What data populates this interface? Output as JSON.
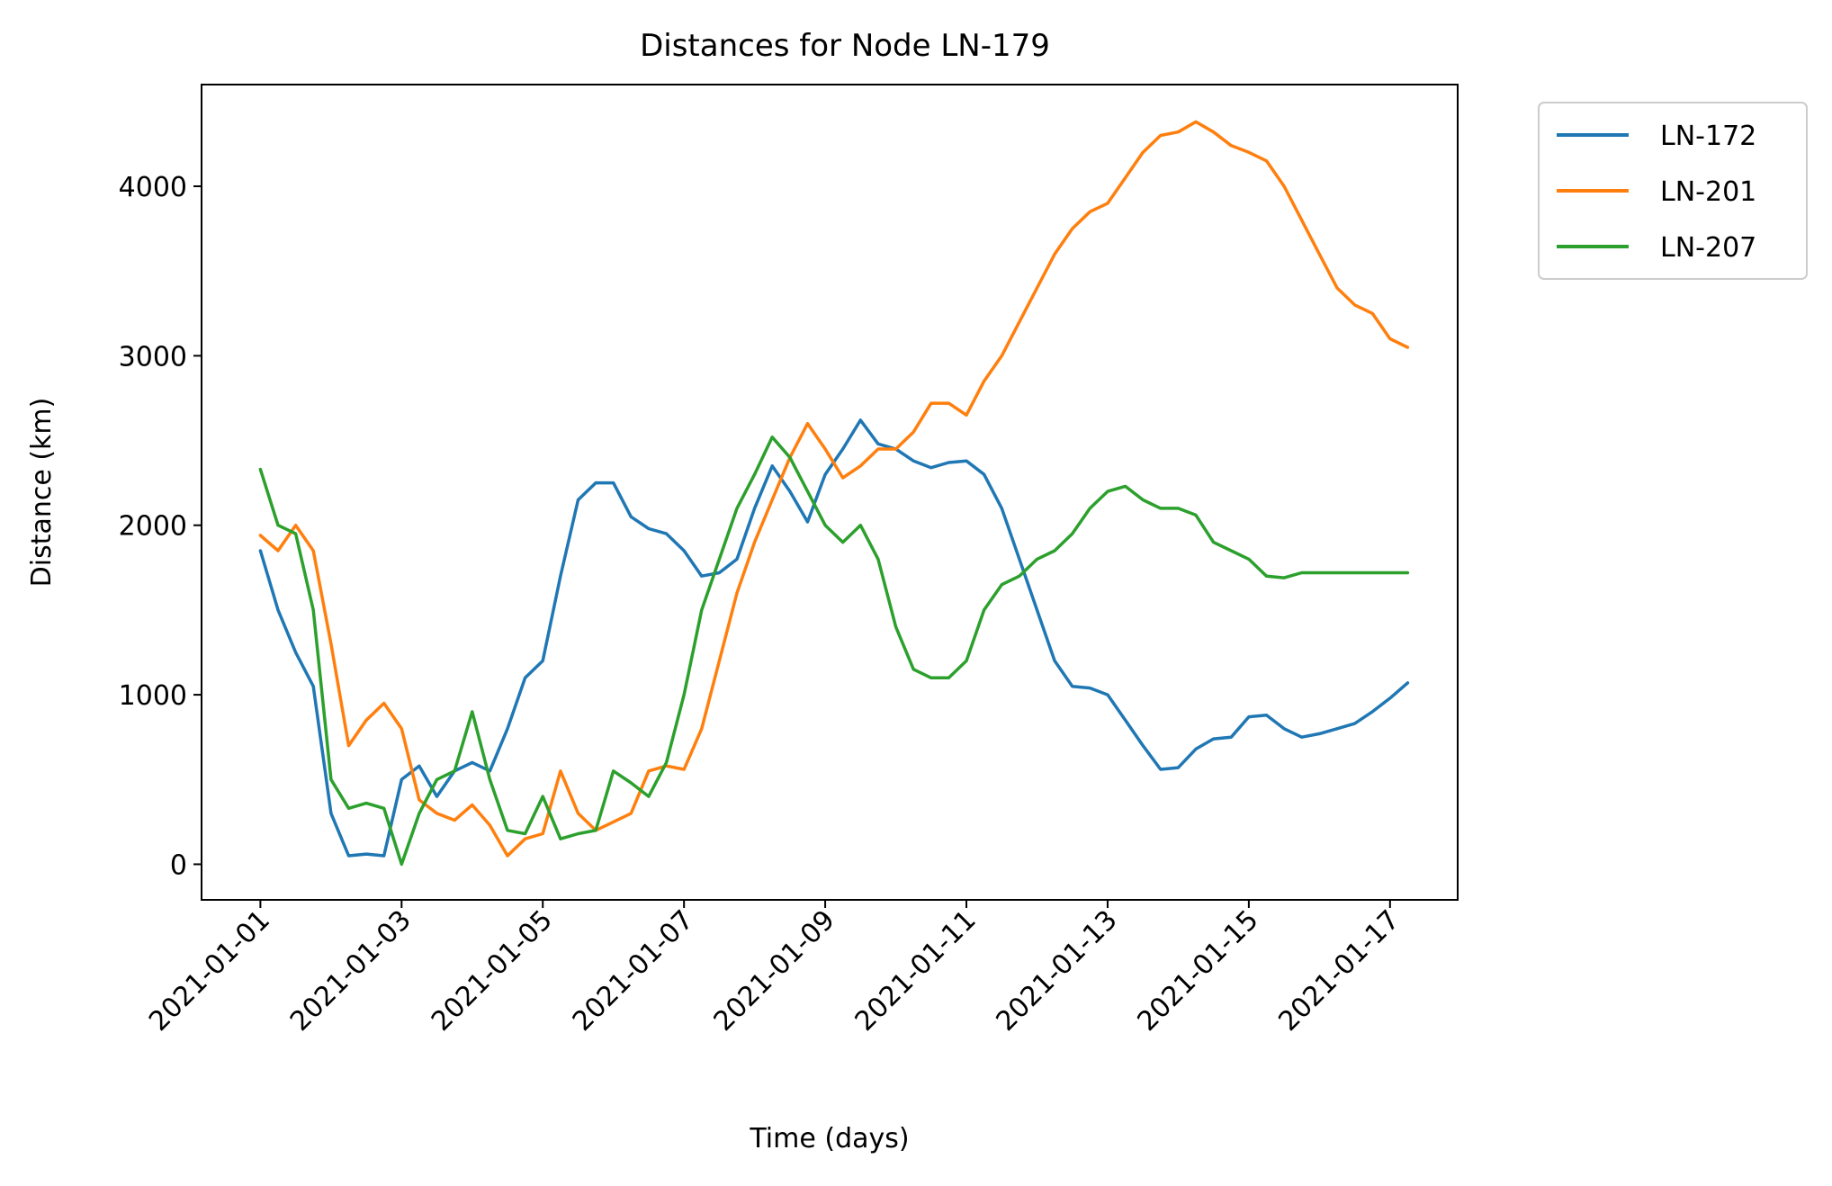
{
  "chart_data": {
    "type": "line",
    "title": "Distances for Node LN-179",
    "xlabel": "Time (days)",
    "ylabel": "Distance (km)",
    "x_ticks": [
      "2021-01-01",
      "2021-01-03",
      "2021-01-05",
      "2021-01-07",
      "2021-01-09",
      "2021-01-11",
      "2021-01-13",
      "2021-01-15",
      "2021-01-17"
    ],
    "y_ticks": [
      0,
      1000,
      2000,
      3000,
      4000
    ],
    "xlim": [
      "2020-12-31T04:00",
      "2021-01-17T23:00"
    ],
    "ylim": [
      -210,
      4600
    ],
    "grid": false,
    "legend_position": "outside-top-right",
    "series": [
      {
        "name": "LN-172",
        "color": "#1f77b4",
        "x": [
          "2021-01-01T00:00",
          "2021-01-01T06:00",
          "2021-01-01T12:00",
          "2021-01-01T18:00",
          "2021-01-02T00:00",
          "2021-01-02T06:00",
          "2021-01-02T12:00",
          "2021-01-02T18:00",
          "2021-01-03T00:00",
          "2021-01-03T06:00",
          "2021-01-03T12:00",
          "2021-01-03T18:00",
          "2021-01-04T00:00",
          "2021-01-04T06:00",
          "2021-01-04T12:00",
          "2021-01-04T18:00",
          "2021-01-05T00:00",
          "2021-01-05T06:00",
          "2021-01-05T12:00",
          "2021-01-05T18:00",
          "2021-01-06T00:00",
          "2021-01-06T06:00",
          "2021-01-06T12:00",
          "2021-01-06T18:00",
          "2021-01-07T00:00",
          "2021-01-07T06:00",
          "2021-01-07T12:00",
          "2021-01-07T18:00",
          "2021-01-08T00:00",
          "2021-01-08T06:00",
          "2021-01-08T12:00",
          "2021-01-08T18:00",
          "2021-01-09T00:00",
          "2021-01-09T06:00",
          "2021-01-09T12:00",
          "2021-01-09T18:00",
          "2021-01-10T00:00",
          "2021-01-10T06:00",
          "2021-01-10T12:00",
          "2021-01-10T18:00",
          "2021-01-11T00:00",
          "2021-01-11T06:00",
          "2021-01-11T12:00",
          "2021-01-11T18:00",
          "2021-01-12T00:00",
          "2021-01-12T06:00",
          "2021-01-12T12:00",
          "2021-01-12T18:00",
          "2021-01-13T00:00",
          "2021-01-13T06:00",
          "2021-01-13T12:00",
          "2021-01-13T18:00",
          "2021-01-14T00:00",
          "2021-01-14T06:00",
          "2021-01-14T12:00",
          "2021-01-14T18:00",
          "2021-01-15T00:00",
          "2021-01-15T06:00",
          "2021-01-15T12:00",
          "2021-01-15T18:00",
          "2021-01-16T00:00",
          "2021-01-16T06:00",
          "2021-01-16T12:00",
          "2021-01-16T18:00",
          "2021-01-17T00:00",
          "2021-01-17T06:00"
        ],
        "y": [
          1850,
          1500,
          1250,
          1050,
          300,
          50,
          60,
          50,
          500,
          580,
          400,
          550,
          600,
          550,
          800,
          1100,
          1200,
          1700,
          2150,
          2250,
          2250,
          2050,
          1980,
          1950,
          1850,
          1700,
          1720,
          1800,
          2100,
          2350,
          2200,
          2020,
          2300,
          2450,
          2620,
          2480,
          2450,
          2380,
          2340,
          2370,
          2380,
          2300,
          2100,
          1800,
          1500,
          1200,
          1050,
          1040,
          1000,
          850,
          700,
          560,
          570,
          680,
          740,
          750,
          870,
          880,
          800,
          750,
          770,
          800,
          830,
          900,
          980,
          1070
        ]
      },
      {
        "name": "LN-201",
        "color": "#ff7f0e",
        "x": [
          "2021-01-01T00:00",
          "2021-01-01T06:00",
          "2021-01-01T12:00",
          "2021-01-01T18:00",
          "2021-01-02T00:00",
          "2021-01-02T06:00",
          "2021-01-02T12:00",
          "2021-01-02T18:00",
          "2021-01-03T00:00",
          "2021-01-03T06:00",
          "2021-01-03T12:00",
          "2021-01-03T18:00",
          "2021-01-04T00:00",
          "2021-01-04T06:00",
          "2021-01-04T12:00",
          "2021-01-04T18:00",
          "2021-01-05T00:00",
          "2021-01-05T06:00",
          "2021-01-05T12:00",
          "2021-01-05T18:00",
          "2021-01-06T00:00",
          "2021-01-06T06:00",
          "2021-01-06T12:00",
          "2021-01-06T18:00",
          "2021-01-07T00:00",
          "2021-01-07T06:00",
          "2021-01-07T12:00",
          "2021-01-07T18:00",
          "2021-01-08T00:00",
          "2021-01-08T06:00",
          "2021-01-08T12:00",
          "2021-01-08T18:00",
          "2021-01-09T00:00",
          "2021-01-09T06:00",
          "2021-01-09T12:00",
          "2021-01-09T18:00",
          "2021-01-10T00:00",
          "2021-01-10T06:00",
          "2021-01-10T12:00",
          "2021-01-10T18:00",
          "2021-01-11T00:00",
          "2021-01-11T06:00",
          "2021-01-11T12:00",
          "2021-01-11T18:00",
          "2021-01-12T00:00",
          "2021-01-12T06:00",
          "2021-01-12T12:00",
          "2021-01-12T18:00",
          "2021-01-13T00:00",
          "2021-01-13T06:00",
          "2021-01-13T12:00",
          "2021-01-13T18:00",
          "2021-01-14T00:00",
          "2021-01-14T06:00",
          "2021-01-14T12:00",
          "2021-01-14T18:00",
          "2021-01-15T00:00",
          "2021-01-15T06:00",
          "2021-01-15T12:00",
          "2021-01-15T18:00",
          "2021-01-16T00:00",
          "2021-01-16T06:00",
          "2021-01-16T12:00",
          "2021-01-16T18:00",
          "2021-01-17T00:00",
          "2021-01-17T06:00"
        ],
        "y": [
          1940,
          1850,
          2000,
          1850,
          1300,
          700,
          850,
          950,
          800,
          380,
          300,
          260,
          350,
          230,
          50,
          150,
          180,
          550,
          300,
          200,
          250,
          300,
          550,
          580,
          560,
          800,
          1200,
          1600,
          1900,
          2150,
          2400,
          2600,
          2450,
          2280,
          2350,
          2450,
          2450,
          2550,
          2720,
          2720,
          2650,
          2850,
          3000,
          3200,
          3400,
          3600,
          3750,
          3850,
          3900,
          4050,
          4200,
          4300,
          4320,
          4380,
          4320,
          4240,
          4200,
          4150,
          4000,
          3800,
          3600,
          3400,
          3300,
          3250,
          3100,
          3050
        ]
      },
      {
        "name": "LN-207",
        "color": "#2ca02c",
        "x": [
          "2021-01-01T00:00",
          "2021-01-01T06:00",
          "2021-01-01T12:00",
          "2021-01-01T18:00",
          "2021-01-02T00:00",
          "2021-01-02T06:00",
          "2021-01-02T12:00",
          "2021-01-02T18:00",
          "2021-01-03T00:00",
          "2021-01-03T06:00",
          "2021-01-03T12:00",
          "2021-01-03T18:00",
          "2021-01-04T00:00",
          "2021-01-04T06:00",
          "2021-01-04T12:00",
          "2021-01-04T18:00",
          "2021-01-05T00:00",
          "2021-01-05T06:00",
          "2021-01-05T12:00",
          "2021-01-05T18:00",
          "2021-01-06T00:00",
          "2021-01-06T06:00",
          "2021-01-06T12:00",
          "2021-01-06T18:00",
          "2021-01-07T00:00",
          "2021-01-07T06:00",
          "2021-01-07T12:00",
          "2021-01-07T18:00",
          "2021-01-08T00:00",
          "2021-01-08T06:00",
          "2021-01-08T12:00",
          "2021-01-08T18:00",
          "2021-01-09T00:00",
          "2021-01-09T06:00",
          "2021-01-09T12:00",
          "2021-01-09T18:00",
          "2021-01-10T00:00",
          "2021-01-10T06:00",
          "2021-01-10T12:00",
          "2021-01-10T18:00",
          "2021-01-11T00:00",
          "2021-01-11T06:00",
          "2021-01-11T12:00",
          "2021-01-11T18:00",
          "2021-01-12T00:00",
          "2021-01-12T06:00",
          "2021-01-12T12:00",
          "2021-01-12T18:00",
          "2021-01-13T00:00",
          "2021-01-13T06:00",
          "2021-01-13T12:00",
          "2021-01-13T18:00",
          "2021-01-14T00:00",
          "2021-01-14T06:00",
          "2021-01-14T12:00",
          "2021-01-14T18:00",
          "2021-01-15T00:00",
          "2021-01-15T06:00",
          "2021-01-15T12:00",
          "2021-01-15T18:00",
          "2021-01-16T00:00",
          "2021-01-16T06:00",
          "2021-01-16T12:00",
          "2021-01-16T18:00",
          "2021-01-17T00:00",
          "2021-01-17T06:00"
        ],
        "y": [
          2330,
          2000,
          1950,
          1500,
          500,
          330,
          360,
          330,
          0,
          300,
          500,
          550,
          900,
          500,
          200,
          180,
          400,
          150,
          180,
          200,
          550,
          480,
          400,
          600,
          1000,
          1500,
          1800,
          2100,
          2300,
          2520,
          2400,
          2200,
          2000,
          1900,
          2000,
          1800,
          1400,
          1150,
          1100,
          1100,
          1200,
          1500,
          1650,
          1700,
          1800,
          1850,
          1950,
          2100,
          2200,
          2230,
          2150,
          2100,
          2100,
          2060,
          1900,
          1850,
          1800,
          1700,
          1690,
          1720,
          1720,
          1720,
          1720,
          1720,
          1720,
          1720
        ]
      }
    ]
  }
}
